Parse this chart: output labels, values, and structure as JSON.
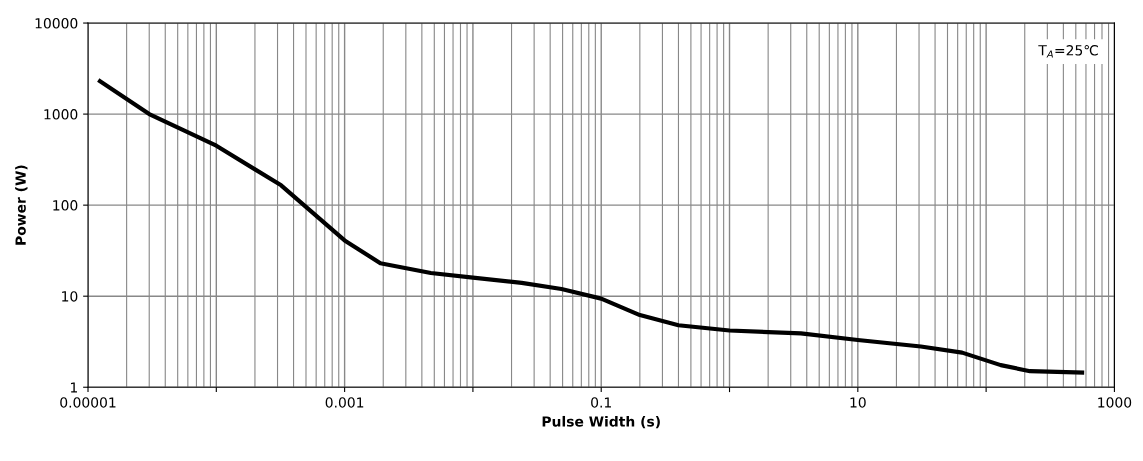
{
  "chart_data": {
    "type": "line",
    "xlabel": "Pulse Width (s)",
    "ylabel": "Power (W)",
    "log": "xy",
    "x": [
      1.24e-05,
      3e-05,
      0.0001,
      0.00032,
      0.001,
      0.0019,
      0.0047,
      0.01,
      0.024,
      0.049,
      0.1,
      0.2,
      0.4,
      1,
      3.6,
      10,
      31,
      65,
      130,
      220,
      560
    ],
    "series": [
      {
        "color": "#000000",
        "values": [
          2300,
          1000,
          450,
          165,
          41,
          23,
          18,
          16,
          14,
          12,
          9.4,
          6.2,
          4.8,
          4.2,
          3.9,
          3.3,
          2.8,
          2.4,
          1.75,
          1.5,
          1.45
        ]
      }
    ],
    "xlim": [
      1e-05,
      1000
    ],
    "ylim": [
      1,
      10000
    ],
    "xticks": [
      {
        "value": 1e-05,
        "label": "0.00001"
      },
      {
        "value": 0.0001,
        "label": null
      },
      {
        "value": 0.001,
        "label": "0.001"
      },
      {
        "value": 0.01,
        "label": null
      },
      {
        "value": 0.1,
        "label": "0.1"
      },
      {
        "value": 1,
        "label": null
      },
      {
        "value": 10,
        "label": "10"
      },
      {
        "value": 100,
        "label": null
      },
      {
        "value": 1000,
        "label": "1000"
      }
    ],
    "yticks": [
      1,
      10,
      100,
      1000,
      10000
    ],
    "grid": true,
    "marker": "none",
    "line_style": "solid",
    "annotations": [
      {
        "text": "T$_{A}$=25℃"
      }
    ]
  }
}
